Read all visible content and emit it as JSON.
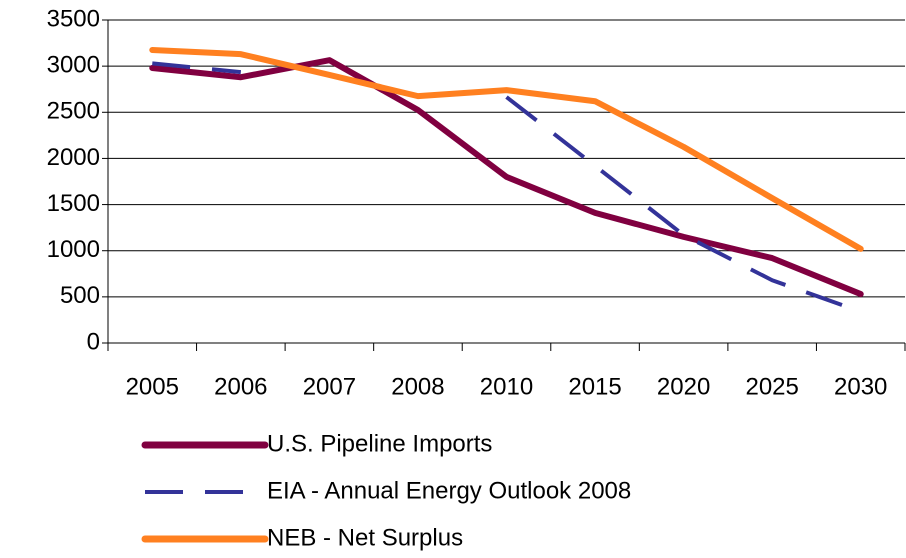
{
  "chart_data": {
    "type": "line",
    "categories": [
      "2005",
      "2006",
      "2007",
      "2008",
      "2010",
      "2015",
      "2020",
      "2025",
      "2030"
    ],
    "series": [
      {
        "name": "U.S. Pipeline Imports",
        "color": "#800040",
        "dashed": false,
        "values": [
          2980,
          2880,
          3065,
          2525,
          1800,
          1410,
          1150,
          920,
          530
        ]
      },
      {
        "name": "EIA - Annual Energy Outlook 2008",
        "color": "#333399",
        "dashed": true,
        "values": [
          3030,
          2935,
          null,
          null,
          2665,
          1920,
          1170,
          680,
          340
        ]
      },
      {
        "name": "NEB - Net Surplus",
        "color": "#ff8020",
        "dashed": false,
        "values": [
          3175,
          3130,
          2905,
          2675,
          2740,
          2620,
          2125,
          1570,
          1020
        ]
      }
    ],
    "ylim": [
      0,
      3500
    ],
    "yticks": [
      0,
      500,
      1000,
      1500,
      2000,
      2500,
      3000,
      3500
    ],
    "grid": true
  }
}
